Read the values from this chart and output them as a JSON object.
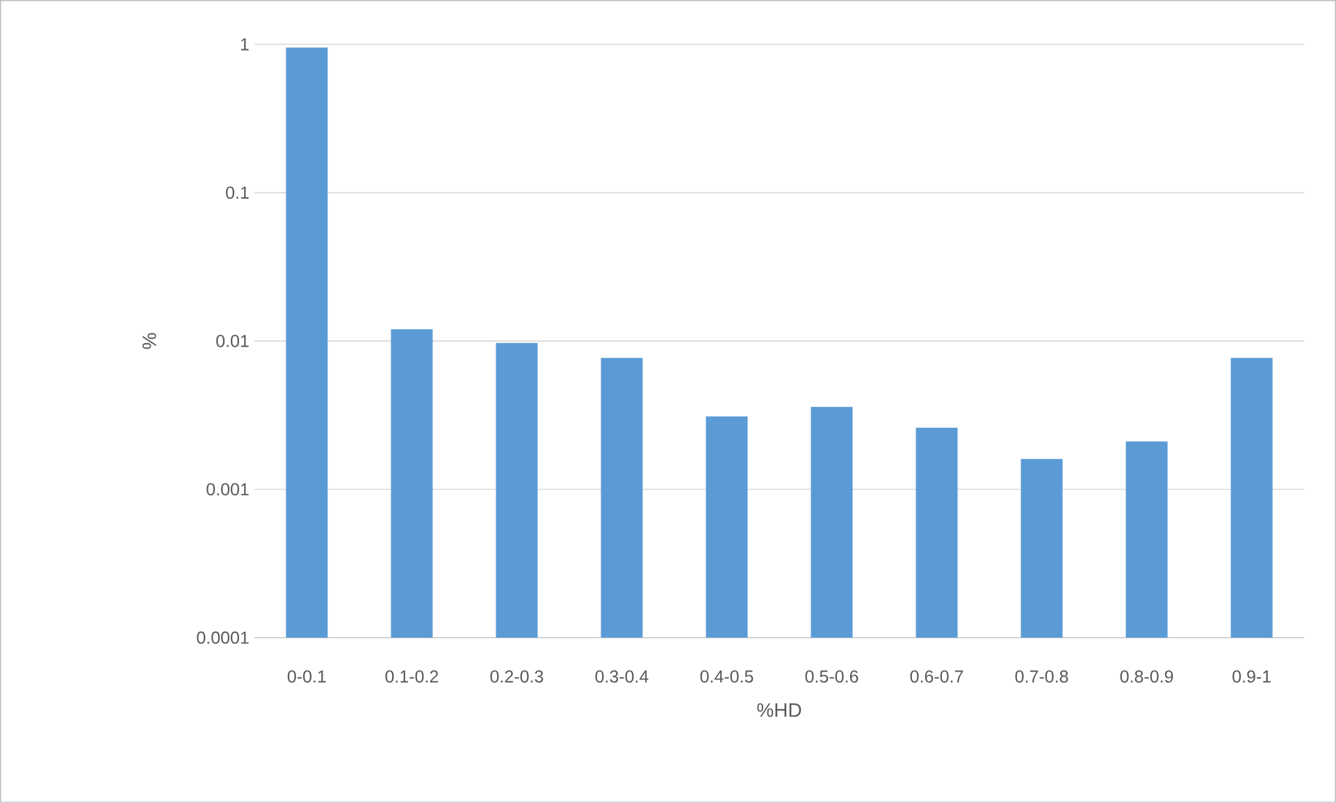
{
  "chart_data": {
    "type": "bar",
    "xlabel": "%HD",
    "ylabel": "%",
    "categories": [
      "0-0.1",
      "0.1-0.2",
      "0.2-0.3",
      "0.3-0.4",
      "0.4-0.5",
      "0.5-0.6",
      "0.6-0.7",
      "0.7-0.8",
      "0.8-0.9",
      "0.9-1"
    ],
    "values": [
      0.95,
      0.012,
      0.0097,
      0.0077,
      0.0031,
      0.0036,
      0.0026,
      0.0016,
      0.0021,
      0.0077
    ],
    "color": "#5b9bd5",
    "log": true,
    "ylim": [
      0.0001,
      1
    ],
    "yticks": [
      0.0001,
      0.001,
      0.01,
      0.1,
      1
    ],
    "grid": "y"
  }
}
